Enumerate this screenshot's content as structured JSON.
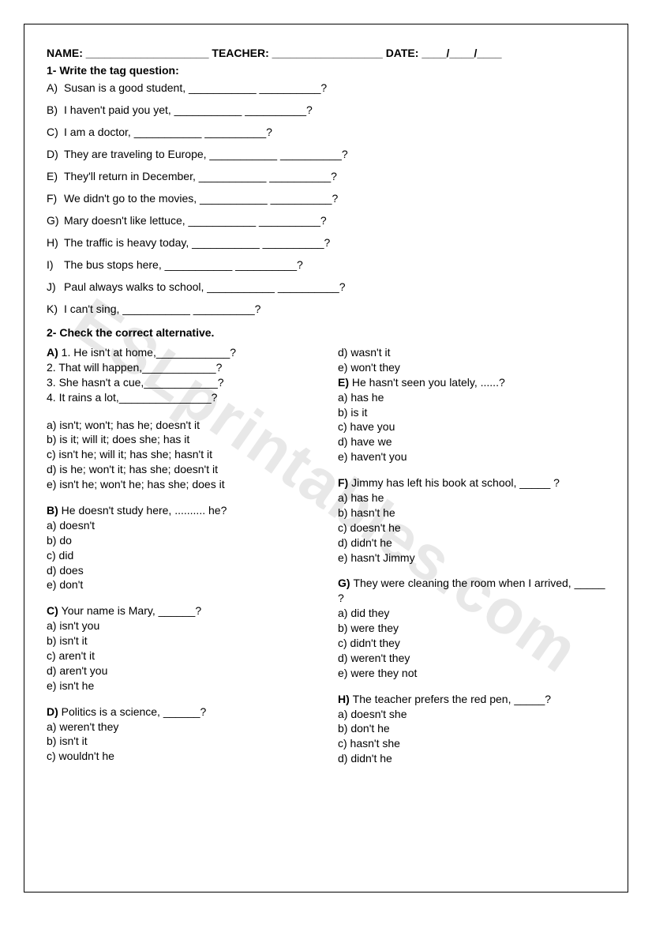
{
  "watermark": "ESLprintables.com",
  "header": {
    "name_label": "NAME:",
    "name_blank": "____________________",
    "teacher_label": "TEACHER:",
    "teacher_blank": "__________________",
    "date_label": "DATE:",
    "date_blank": "____/____/____"
  },
  "section1": {
    "title": "1-  Write the tag question:",
    "items": [
      {
        "letter": "A)",
        "text": "Susan is a good student, ___________ __________?"
      },
      {
        "letter": "B)",
        "text": "I haven't paid you yet, ___________ __________?"
      },
      {
        "letter": "C)",
        "text": "I am a doctor, ___________ __________?"
      },
      {
        "letter": "D)",
        "text": "They are traveling to Europe, ___________ __________?"
      },
      {
        "letter": "E)",
        "text": "They'll return in December, ___________ __________?"
      },
      {
        "letter": "F)",
        "text": "We didn't go to the movies, ___________ __________?"
      },
      {
        "letter": "G)",
        "text": "Mary doesn't like lettuce, ___________ __________?"
      },
      {
        "letter": "H)",
        "text": "The traffic is heavy today, ___________ __________?"
      },
      {
        "letter": "I)",
        "text": "The bus stops here, ___________ __________?"
      },
      {
        "letter": "J)",
        "text": "Paul always walks to school, ___________ __________?"
      },
      {
        "letter": "K)",
        "text": "I can't sing, ___________ __________?"
      }
    ]
  },
  "section2": {
    "title": "2-  Check the correct alternative.",
    "left": {
      "A": {
        "head": "A)",
        "stems": [
          "1. He isn't at home,____________?",
          "2. That will happen,____________?",
          "3. She hasn't a cue,____________?",
          "4. It rains a lot,_______________?"
        ],
        "opts": [
          "a) isn't; won't; has he; doesn't it",
          "b) is it; will it; does she; has it",
          "c) isn't he; will it; has she; hasn't it",
          "d) is he; won't it; has she; doesn't it",
          "e) isn't he; won't he; has she; does it"
        ]
      },
      "B": {
        "head": "B)",
        "stem": "He doesn't study here, .......... he?",
        "opts": [
          "a) doesn't",
          "b) do",
          "c) did",
          "d) does",
          "e) don't"
        ]
      },
      "C": {
        "head": "C)",
        "stem": "Your name is Mary, ______?",
        "opts": [
          "a) isn't you",
          "b) isn't it",
          "c) aren't it",
          "d) aren't you",
          "e) isn't he"
        ]
      },
      "D": {
        "head": "D)",
        "stem": "Politics is a science, ______?",
        "opts": [
          "a) weren't they",
          "b) isn't it",
          "c) wouldn't he"
        ]
      }
    },
    "right": {
      "A_cont": {
        "opts": [
          "d) wasn't it",
          "e) won't they"
        ]
      },
      "E": {
        "head": "E)",
        "stem": "He hasn't seen you lately, ......?",
        "opts": [
          "a) has he",
          "b) is it",
          "c) have you",
          "d) have we",
          "e) haven't you"
        ]
      },
      "F": {
        "head": "F)",
        "stem": "Jimmy has left his book at school, _____ ?",
        "opts": [
          "a) has he",
          "b) hasn't he",
          "c) doesn't he",
          "d) didn't he",
          "e) hasn't Jimmy"
        ]
      },
      "G": {
        "head": "G)",
        "stem": "They were cleaning the room when I arrived, _____ ?",
        "opts": [
          "a) did they",
          "b) were they",
          "c) didn't they",
          "d) weren't they",
          "e) were they not"
        ]
      },
      "H": {
        "head": "H)",
        "stem": "The teacher prefers the red pen, _____?",
        "opts": [
          "a) doesn't she",
          "b) don't he",
          "c) hasn't she",
          "d) didn't he"
        ]
      }
    }
  }
}
